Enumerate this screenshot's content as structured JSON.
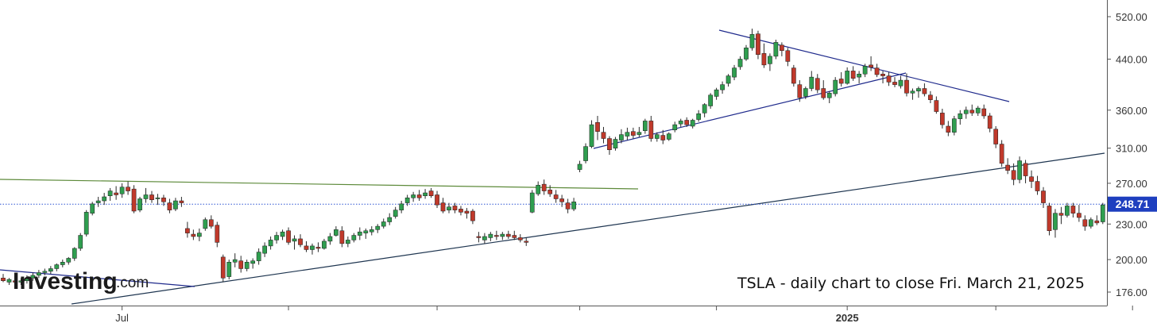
{
  "chart_data": {
    "type": "candlestick",
    "caption": "TSLA - daily chart to close Fri. March 21, 2025",
    "brand": {
      "name": "Investing",
      "domain": ".com"
    },
    "colors": {
      "up": "#2f9e4f",
      "down": "#c0392b",
      "wick": "#2a2a2a",
      "trend_blue": "#1f2a8c",
      "trend_green": "#5d8a3a",
      "trend_dark": "#1e3550",
      "last_price_box": "#1e3fbf"
    },
    "y_axis": {
      "scale": "log",
      "ticks": [
        "520.00",
        "440.00",
        "360.00",
        "310.00",
        "270.00",
        "230.00",
        "200.00",
        "176.00"
      ]
    },
    "last_price": {
      "value": 248.71,
      "label": "248.71"
    },
    "x_labels": [
      {
        "label": "Jul",
        "at": 20
      },
      {
        "label": "2025",
        "at": 142
      }
    ],
    "x_ticks": [
      20,
      48,
      73,
      97,
      120,
      142,
      167,
      190
    ],
    "ohlc": [
      [
        0,
        186,
        189,
        183,
        184
      ],
      [
        1,
        183,
        186,
        181,
        185
      ],
      [
        2,
        184,
        187,
        180,
        183
      ],
      [
        3,
        183,
        186,
        181,
        184
      ],
      [
        4,
        184,
        188,
        182,
        186
      ],
      [
        5,
        186,
        190,
        184,
        188
      ],
      [
        6,
        188,
        192,
        186,
        190
      ],
      [
        7,
        190,
        193,
        188,
        191
      ],
      [
        8,
        191,
        195,
        189,
        193
      ],
      [
        9,
        193,
        197,
        191,
        196
      ],
      [
        10,
        196,
        200,
        194,
        198
      ],
      [
        11,
        198,
        202,
        196,
        201
      ],
      [
        12,
        201,
        210,
        199,
        209
      ],
      [
        13,
        209,
        222,
        207,
        220
      ],
      [
        14,
        221,
        243,
        219,
        241
      ],
      [
        15,
        240,
        251,
        238,
        249
      ],
      [
        16,
        250,
        256,
        246,
        252
      ],
      [
        17,
        252,
        260,
        248,
        256
      ],
      [
        18,
        257,
        265,
        252,
        262
      ],
      [
        19,
        260,
        267,
        253,
        258
      ],
      [
        20,
        259,
        270,
        255,
        266
      ],
      [
        21,
        266,
        272,
        258,
        262
      ],
      [
        22,
        264,
        268,
        240,
        242
      ],
      [
        23,
        243,
        256,
        241,
        254
      ],
      [
        24,
        254,
        265,
        250,
        258
      ],
      [
        25,
        258,
        262,
        250,
        253
      ],
      [
        26,
        254,
        259,
        248,
        255
      ],
      [
        27,
        255,
        258,
        247,
        251
      ],
      [
        28,
        250,
        254,
        240,
        243
      ],
      [
        29,
        244,
        255,
        242,
        252
      ],
      [
        30,
        252,
        256,
        246,
        250
      ],
      [
        31,
        226,
        232,
        218,
        222
      ],
      [
        32,
        221,
        225,
        216,
        219
      ],
      [
        33,
        219,
        226,
        215,
        222
      ],
      [
        34,
        226,
        236,
        224,
        234
      ],
      [
        35,
        234,
        238,
        226,
        228
      ],
      [
        36,
        229,
        232,
        210,
        214
      ],
      [
        37,
        202,
        204,
        183,
        186
      ],
      [
        38,
        187,
        200,
        185,
        198
      ],
      [
        39,
        198,
        205,
        194,
        200
      ],
      [
        40,
        199,
        203,
        190,
        193
      ],
      [
        41,
        193,
        200,
        191,
        198
      ],
      [
        42,
        197,
        201,
        193,
        199
      ],
      [
        43,
        199,
        209,
        196,
        206
      ],
      [
        44,
        205,
        214,
        202,
        211
      ],
      [
        45,
        211,
        219,
        208,
        216
      ],
      [
        46,
        216,
        223,
        213,
        220
      ],
      [
        47,
        219,
        225,
        216,
        223
      ],
      [
        48,
        224,
        227,
        212,
        214
      ],
      [
        49,
        215,
        220,
        208,
        217
      ],
      [
        50,
        217,
        221,
        210,
        212
      ],
      [
        51,
        211,
        215,
        206,
        208
      ],
      [
        52,
        208,
        213,
        204,
        211
      ],
      [
        53,
        210,
        214,
        206,
        209
      ],
      [
        54,
        209,
        217,
        208,
        215
      ],
      [
        55,
        215,
        222,
        212,
        219
      ],
      [
        56,
        220,
        228,
        219,
        225
      ],
      [
        57,
        224,
        228,
        210,
        213
      ],
      [
        58,
        213,
        219,
        210,
        216
      ],
      [
        59,
        216,
        222,
        214,
        220
      ],
      [
        60,
        220,
        227,
        216,
        223
      ],
      [
        61,
        222,
        226,
        217,
        224
      ],
      [
        62,
        223,
        228,
        220,
        225
      ],
      [
        63,
        225,
        230,
        222,
        228
      ],
      [
        64,
        228,
        235,
        226,
        232
      ],
      [
        65,
        232,
        240,
        229,
        236
      ],
      [
        66,
        237,
        246,
        235,
        243
      ],
      [
        67,
        243,
        252,
        240,
        249
      ],
      [
        68,
        250,
        258,
        247,
        255
      ],
      [
        69,
        255,
        261,
        251,
        258
      ],
      [
        70,
        258,
        263,
        252,
        255
      ],
      [
        71,
        257,
        264,
        254,
        260
      ],
      [
        72,
        262,
        265,
        255,
        257
      ],
      [
        73,
        258,
        262,
        245,
        248
      ],
      [
        74,
        250,
        255,
        240,
        242
      ],
      [
        75,
        243,
        250,
        240,
        246
      ],
      [
        76,
        247,
        250,
        240,
        243
      ],
      [
        77,
        244,
        247,
        238,
        241
      ],
      [
        78,
        242,
        245,
        235,
        240
      ],
      [
        79,
        242,
        244,
        230,
        233
      ],
      [
        80,
        219,
        223,
        214,
        218
      ],
      [
        81,
        216,
        222,
        213,
        219
      ],
      [
        82,
        218,
        223,
        215,
        221
      ],
      [
        83,
        220,
        224,
        216,
        219
      ],
      [
        84,
        219,
        223,
        216,
        221
      ],
      [
        85,
        221,
        224,
        217,
        219
      ],
      [
        86,
        220,
        224,
        216,
        218
      ],
      [
        87,
        218,
        221,
        214,
        216
      ],
      [
        88,
        215,
        218,
        211,
        214
      ],
      [
        89,
        241,
        263,
        240,
        260
      ],
      [
        90,
        259,
        272,
        257,
        268
      ],
      [
        91,
        269,
        274,
        258,
        262
      ],
      [
        92,
        263,
        268,
        256,
        259
      ],
      [
        93,
        258,
        263,
        250,
        254
      ],
      [
        94,
        254,
        258,
        246,
        251
      ],
      [
        95,
        250,
        254,
        240,
        244
      ],
      [
        96,
        244,
        255,
        242,
        251
      ],
      [
        97,
        285,
        295,
        282,
        291
      ],
      [
        98,
        295,
        316,
        292,
        312
      ],
      [
        99,
        312,
        346,
        310,
        340
      ],
      [
        100,
        343,
        352,
        320,
        331
      ],
      [
        101,
        330,
        337,
        316,
        322
      ],
      [
        102,
        322,
        325,
        302,
        308
      ],
      [
        103,
        310,
        324,
        307,
        321
      ],
      [
        104,
        320,
        334,
        316,
        327
      ],
      [
        105,
        325,
        336,
        320,
        330
      ],
      [
        106,
        331,
        336,
        322,
        326
      ],
      [
        107,
        327,
        337,
        324,
        330
      ],
      [
        108,
        332,
        348,
        328,
        345
      ],
      [
        109,
        345,
        352,
        318,
        322
      ],
      [
        110,
        322,
        330,
        318,
        327
      ],
      [
        111,
        326,
        333,
        315,
        320
      ],
      [
        112,
        321,
        330,
        319,
        328
      ],
      [
        113,
        333,
        344,
        330,
        340
      ],
      [
        114,
        341,
        348,
        337,
        345
      ],
      [
        115,
        346,
        350,
        337,
        340
      ],
      [
        116,
        338,
        348,
        335,
        346
      ],
      [
        117,
        347,
        360,
        344,
        355
      ],
      [
        118,
        356,
        370,
        350,
        368
      ],
      [
        119,
        366,
        385,
        362,
        382
      ],
      [
        120,
        380,
        393,
        375,
        390
      ],
      [
        121,
        390,
        403,
        384,
        398
      ],
      [
        122,
        400,
        415,
        395,
        412
      ],
      [
        123,
        410,
        430,
        405,
        425
      ],
      [
        124,
        427,
        445,
        422,
        440
      ],
      [
        125,
        440,
        465,
        437,
        460
      ],
      [
        126,
        460,
        496,
        455,
        485
      ],
      [
        127,
        486,
        492,
        440,
        448
      ],
      [
        128,
        450,
        468,
        425,
        430
      ],
      [
        129,
        432,
        450,
        420,
        445
      ],
      [
        130,
        445,
        475,
        440,
        470
      ],
      [
        131,
        465,
        470,
        445,
        455
      ],
      [
        132,
        455,
        460,
        428,
        436
      ],
      [
        133,
        425,
        430,
        395,
        400
      ],
      [
        134,
        398,
        405,
        372,
        378
      ],
      [
        135,
        380,
        395,
        376,
        392
      ],
      [
        136,
        392,
        420,
        388,
        410
      ],
      [
        137,
        408,
        415,
        385,
        390
      ],
      [
        138,
        392,
        405,
        375,
        378
      ],
      [
        139,
        378,
        388,
        370,
        385
      ],
      [
        140,
        384,
        410,
        380,
        405
      ],
      [
        141,
        407,
        418,
        395,
        400
      ],
      [
        142,
        400,
        426,
        398,
        420
      ],
      [
        143,
        420,
        428,
        404,
        408
      ],
      [
        144,
        410,
        420,
        400,
        415
      ],
      [
        145,
        415,
        432,
        410,
        428
      ],
      [
        146,
        430,
        445,
        420,
        426
      ],
      [
        147,
        425,
        432,
        410,
        414
      ],
      [
        148,
        415,
        420,
        400,
        412
      ],
      [
        149,
        412,
        418,
        396,
        402
      ],
      [
        150,
        402,
        410,
        394,
        398
      ],
      [
        151,
        396,
        412,
        392,
        405
      ],
      [
        152,
        405,
        416,
        380,
        385
      ],
      [
        153,
        385,
        392,
        375,
        388
      ],
      [
        154,
        388,
        395,
        378,
        392
      ],
      [
        155,
        392,
        400,
        380,
        384
      ],
      [
        156,
        382,
        388,
        370,
        375
      ],
      [
        157,
        374,
        380,
        355,
        358
      ],
      [
        158,
        356,
        362,
        335,
        340
      ],
      [
        159,
        338,
        345,
        325,
        330
      ],
      [
        160,
        330,
        352,
        326,
        348
      ],
      [
        161,
        348,
        360,
        340,
        355
      ],
      [
        162,
        355,
        365,
        348,
        360
      ],
      [
        163,
        360,
        368,
        352,
        356
      ],
      [
        164,
        356,
        366,
        352,
        363
      ],
      [
        165,
        362,
        368,
        348,
        352
      ],
      [
        166,
        352,
        356,
        330,
        335
      ],
      [
        167,
        334,
        338,
        310,
        315
      ],
      [
        168,
        315,
        320,
        288,
        292
      ],
      [
        169,
        290,
        298,
        280,
        284
      ],
      [
        170,
        284,
        292,
        268,
        274
      ],
      [
        171,
        274,
        300,
        270,
        295
      ],
      [
        172,
        292,
        296,
        270,
        278
      ],
      [
        173,
        277,
        284,
        265,
        272
      ],
      [
        174,
        272,
        278,
        258,
        262
      ],
      [
        175,
        262,
        266,
        245,
        250
      ],
      [
        176,
        247,
        250,
        220,
        224
      ],
      [
        177,
        225,
        244,
        218,
        240
      ],
      [
        178,
        240,
        246,
        230,
        238
      ],
      [
        179,
        238,
        250,
        236,
        247
      ],
      [
        180,
        247,
        250,
        236,
        240
      ],
      [
        181,
        240,
        248,
        232,
        236
      ],
      [
        182,
        234,
        238,
        224,
        228
      ],
      [
        183,
        228,
        236,
        226,
        234
      ],
      [
        184,
        233,
        238,
        229,
        231
      ],
      [
        185,
        232,
        250,
        230,
        248
      ]
    ]
  }
}
